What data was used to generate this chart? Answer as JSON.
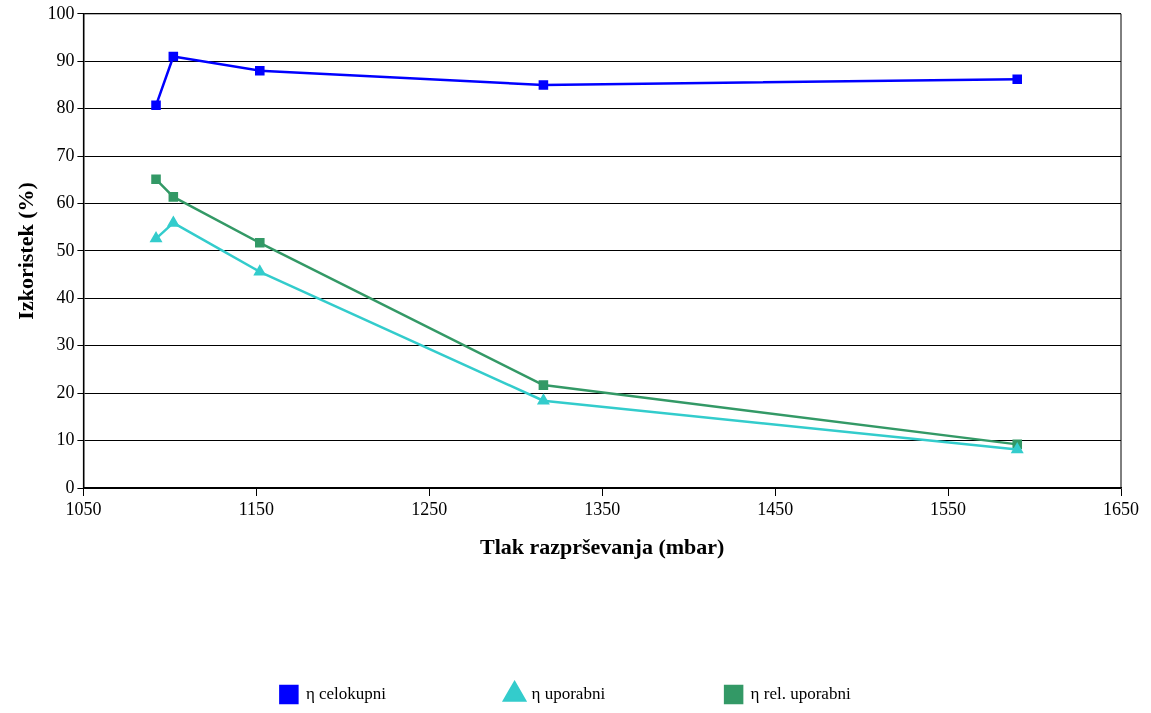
{
  "chart_data": {
    "type": "line",
    "xlabel": "Tlak razprševanja (mbar)",
    "ylabel": "Izkoristek (%)",
    "xlim": [
      1050,
      1650
    ],
    "xticks": [
      1050,
      1150,
      1250,
      1350,
      1450,
      1550,
      1650
    ],
    "ylim": [
      0,
      100
    ],
    "yticks": [
      0,
      10,
      20,
      30,
      40,
      50,
      60,
      70,
      80,
      90,
      100
    ],
    "grid": "y",
    "legend": "bottom",
    "series": [
      {
        "name": "η celokupni",
        "color": "#0000ff",
        "marker": "square",
        "x": [
          1092,
          1102,
          1152,
          1316,
          1590
        ],
        "values": [
          80.7,
          91,
          88,
          85,
          86.2
        ]
      },
      {
        "name": "η uporabni",
        "color": "#33cccc",
        "marker": "triangle",
        "x": [
          1092,
          1102,
          1152,
          1316,
          1590
        ],
        "values": [
          52.6,
          55.9,
          45.6,
          18.4,
          8.1
        ]
      },
      {
        "name": "η rel. uporabni",
        "color": "#339966",
        "marker": "square",
        "x": [
          1092,
          1102,
          1152,
          1316,
          1590
        ],
        "values": [
          65.1,
          61.4,
          51.7,
          21.7,
          9.2
        ]
      }
    ]
  }
}
